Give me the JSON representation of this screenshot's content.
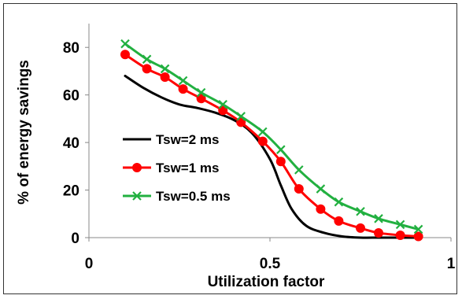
{
  "chart_data": {
    "type": "line",
    "title": "",
    "xlabel": "Utilization factor",
    "ylabel": "% of energy savings",
    "xlim": [
      0,
      1
    ],
    "ylim": [
      0,
      90
    ],
    "xticks": [
      0,
      0.5,
      1
    ],
    "xtick_labels": [
      "0",
      "0.5",
      "1"
    ],
    "yticks": [
      0,
      20,
      40,
      60,
      80
    ],
    "ytick_labels": [
      "0",
      "20",
      "40",
      "60",
      "80"
    ],
    "grid": false,
    "legend_position": "center-left",
    "series": [
      {
        "name": "Tsw=2 ms",
        "color": "#000000",
        "marker": "none",
        "x": [
          0.1,
          0.15,
          0.2,
          0.25,
          0.3,
          0.35,
          0.4,
          0.45,
          0.5,
          0.53,
          0.56,
          0.6,
          0.65,
          0.7,
          0.75,
          0.8,
          0.85,
          0.9
        ],
        "y": [
          68,
          63,
          59,
          56,
          54.5,
          52.5,
          49.5,
          44,
          33,
          22,
          12,
          5,
          2,
          0.5,
          0,
          0,
          0,
          0
        ]
      },
      {
        "name": "Tsw=1 ms",
        "color": "#ff0000",
        "marker": "circle",
        "x": [
          0.1,
          0.16,
          0.21,
          0.26,
          0.31,
          0.37,
          0.42,
          0.48,
          0.53,
          0.58,
          0.64,
          0.69,
          0.75,
          0.8,
          0.86,
          0.91
        ],
        "y": [
          77,
          71,
          67.5,
          62.5,
          58.5,
          53.5,
          48.5,
          40.5,
          32,
          20.5,
          12,
          7,
          4,
          2,
          1,
          0.5
        ]
      },
      {
        "name": "Tsw=0.5 ms",
        "color": "#22b040",
        "marker": "x",
        "x": [
          0.1,
          0.16,
          0.21,
          0.26,
          0.31,
          0.37,
          0.42,
          0.48,
          0.53,
          0.58,
          0.64,
          0.69,
          0.75,
          0.8,
          0.86,
          0.91
        ],
        "y": [
          81.5,
          75,
          71,
          66,
          61,
          56,
          51,
          44.5,
          37,
          28.5,
          20.5,
          15,
          11,
          8,
          5.5,
          3.5
        ]
      }
    ]
  }
}
